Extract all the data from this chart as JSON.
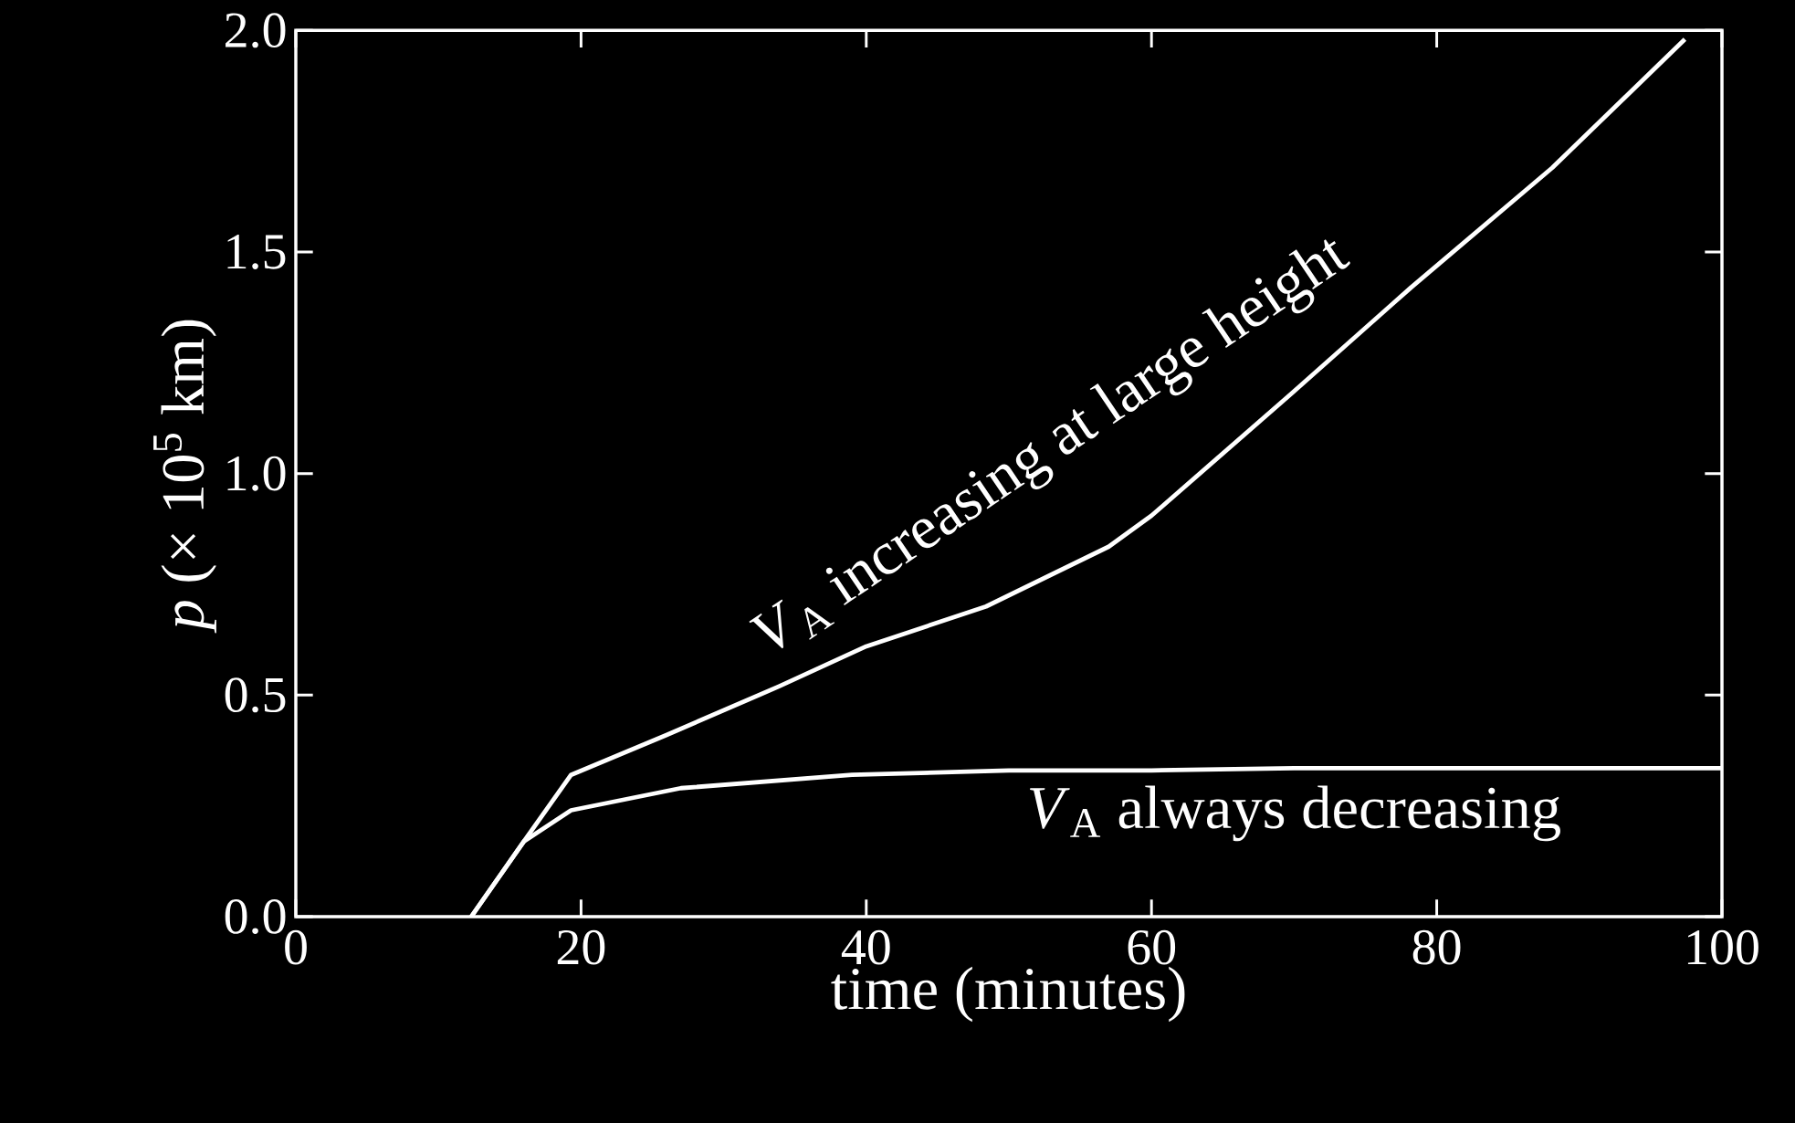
{
  "chart_data": {
    "type": "line",
    "xlabel": "time (minutes)",
    "ylabel": "*p* (× 10$^{5}$ km)",
    "xlim": [
      0,
      100
    ],
    "ylim": [
      0,
      2
    ],
    "xticks": [
      0,
      20,
      40,
      60,
      80,
      100
    ],
    "yticks": [
      {
        "value": 0,
        "label": "0.0"
      },
      {
        "value": 0.5,
        "label": "0.5"
      },
      {
        "value": 1,
        "label": "1.0"
      },
      {
        "value": 1.5,
        "label": "1.5"
      },
      {
        "value": 2,
        "label": "2.0"
      }
    ],
    "grid": false,
    "legend": false,
    "marker": "none",
    "line_style": "solid",
    "series": [
      {
        "name": "*V*$_{A}$ increasing at large height",
        "color": "#ffffff",
        "x": [
          12.3,
          16,
          19.3,
          26,
          33.9,
          40,
          48.4,
          57,
          60,
          69.8,
          78.2,
          88.1,
          97.4
        ],
        "values": [
          0,
          0.17,
          0.32,
          0.41,
          0.52,
          0.61,
          0.7,
          0.835,
          0.905,
          1.18,
          1.42,
          1.69,
          1.98
        ]
      },
      {
        "name": "*V*$_{A}$ always decreasing",
        "color": "#ffffff",
        "x": [
          12.3,
          16,
          19.3,
          27,
          39,
          50,
          60,
          70,
          80,
          90,
          100
        ],
        "values": [
          0,
          0.17,
          0.24,
          0.29,
          0.32,
          0.33,
          0.33,
          0.335,
          0.335,
          0.335,
          0.335
        ]
      }
    ]
  }
}
